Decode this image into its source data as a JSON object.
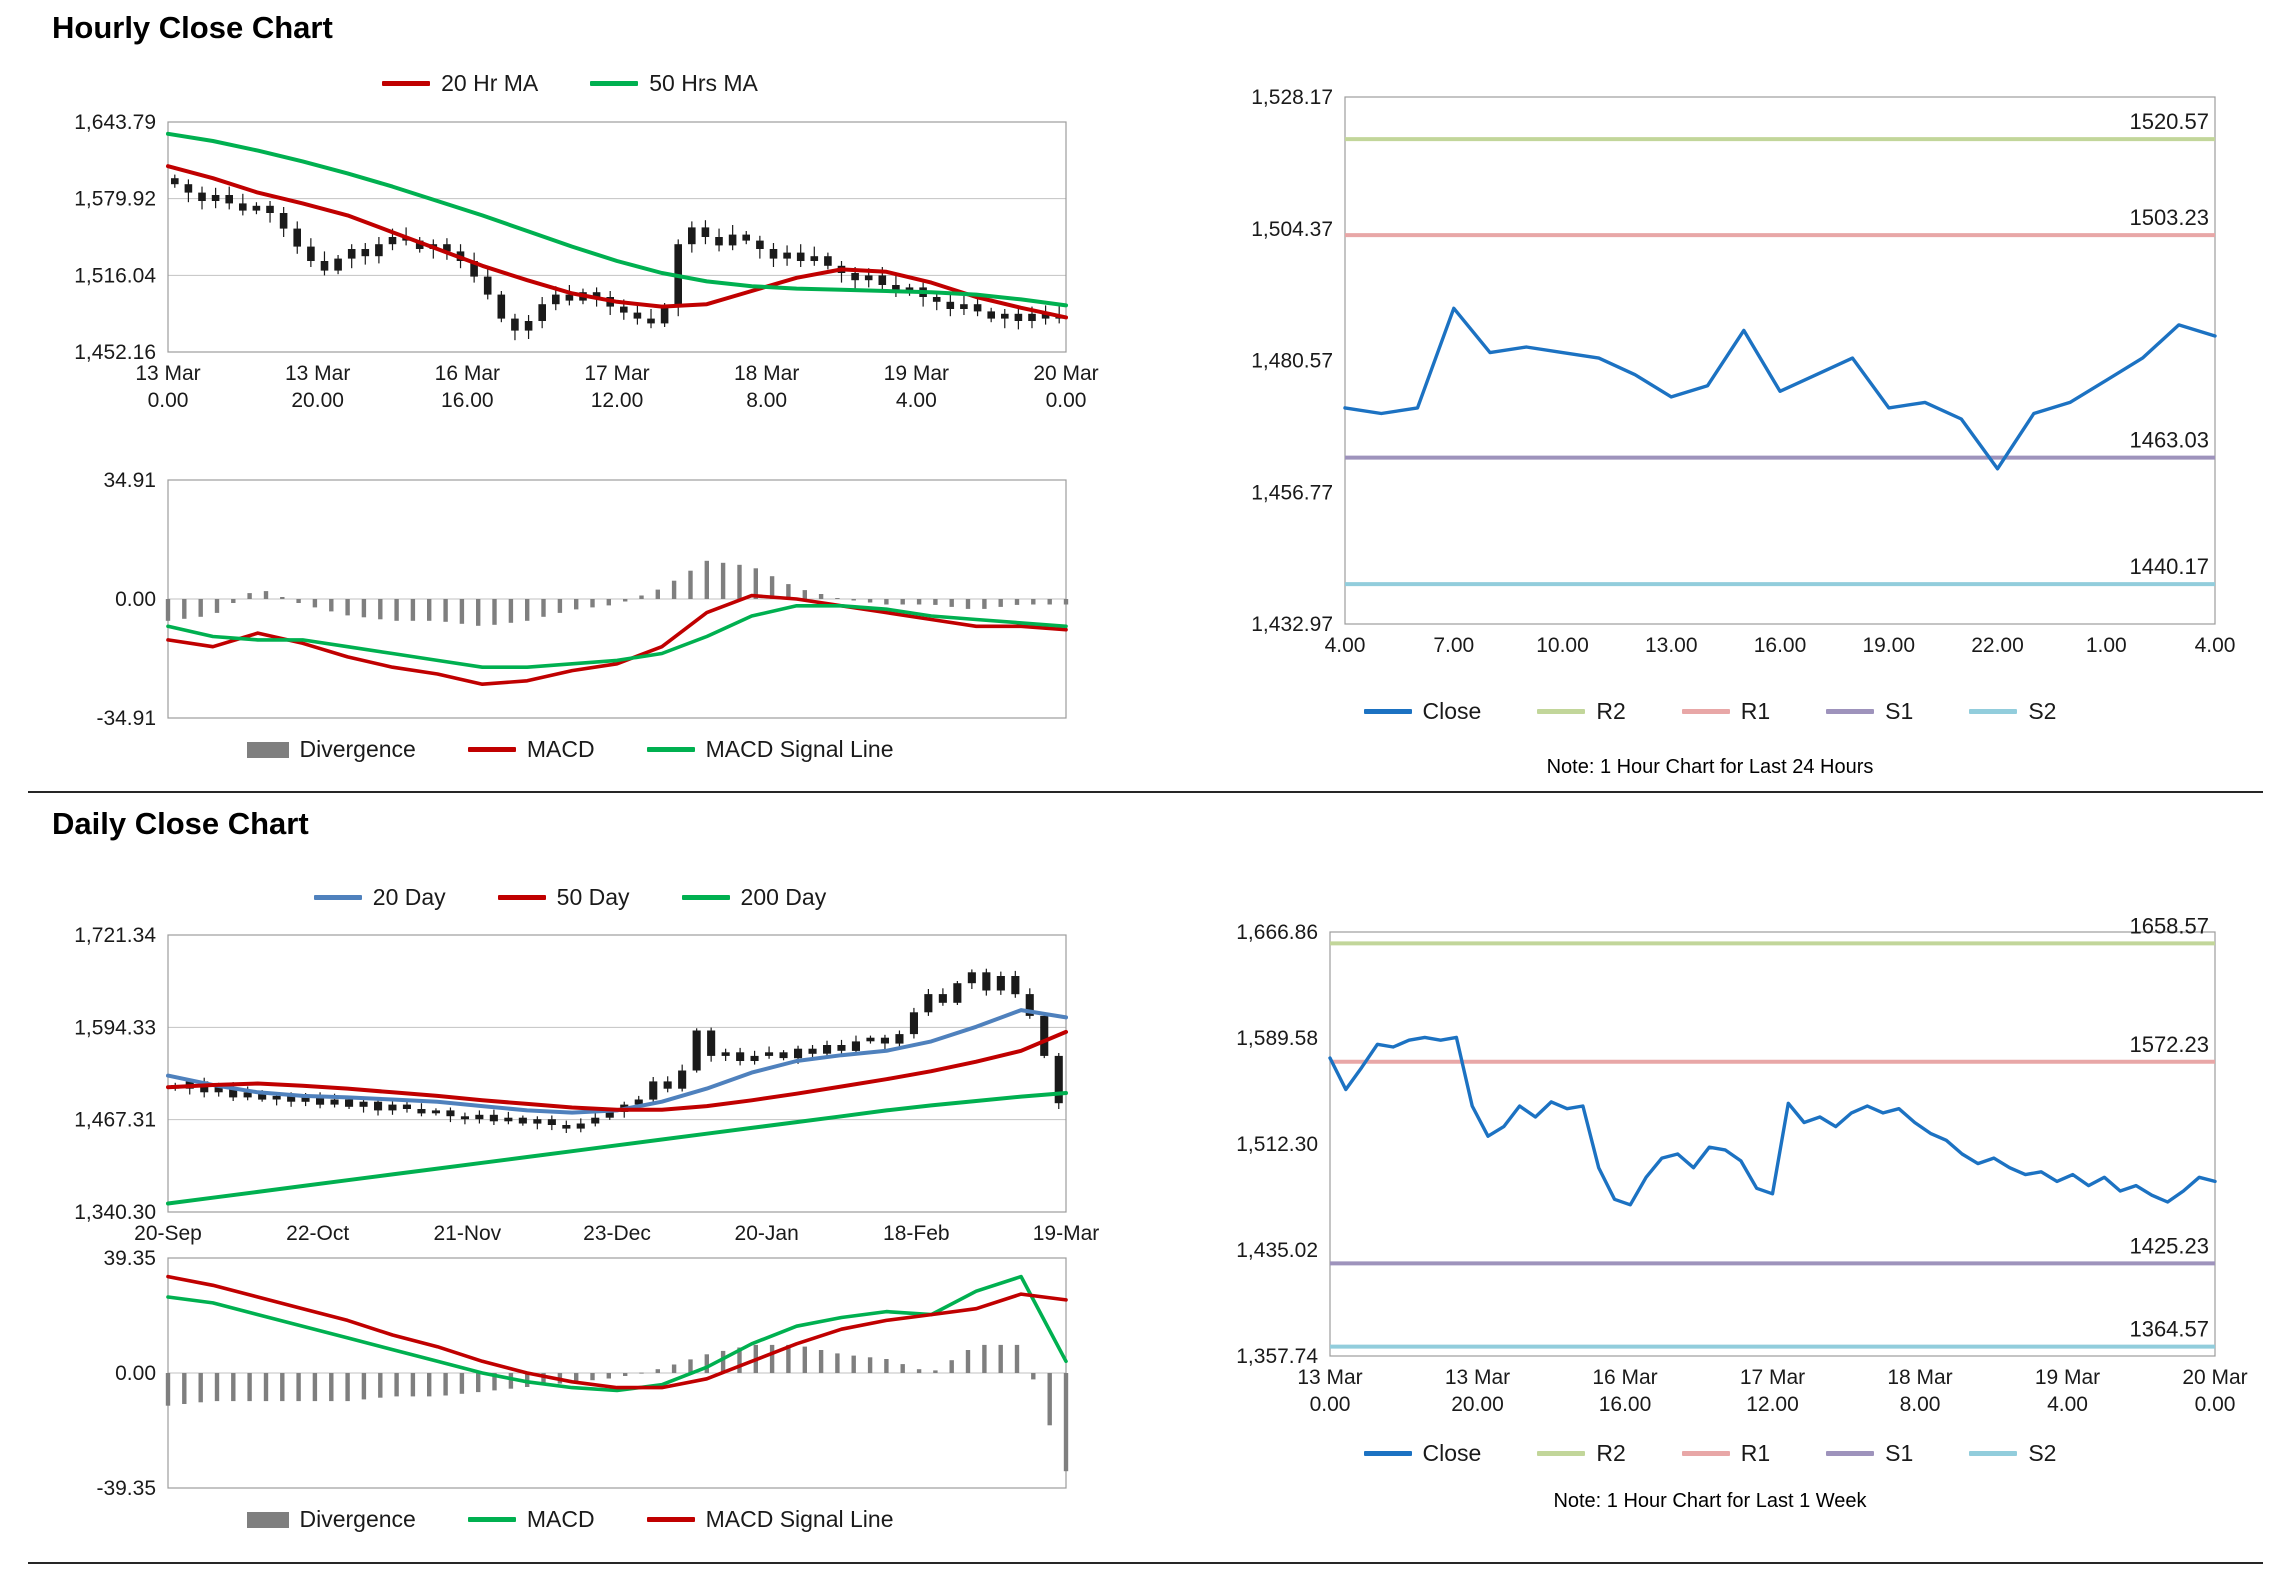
{
  "page": {
    "hourly_title": "Hourly Close Chart",
    "daily_title": "Daily Close Chart"
  },
  "colors": {
    "candle": "#1a1a1a",
    "red_ma": "#c00000",
    "green_ma": "#00b050",
    "blue_ma": "#4f81bd",
    "close_line": "#1c72c2",
    "r2": "#c2d69a",
    "r1": "#e8a7a7",
    "s1": "#9e93bc",
    "s2": "#92cddc",
    "divergence": "#7f7f7f",
    "grid": "#c2c2c2"
  },
  "chart_data": [
    {
      "id": "hourly_price",
      "type": "candlestick",
      "legend": [
        {
          "label": "20 Hr MA",
          "color": "#c00000"
        },
        {
          "label": "50 Hrs MA",
          "color": "#00b050"
        }
      ],
      "ylim": [
        1452.16,
        1643.79
      ],
      "grid": true,
      "yticks": [
        1643.79,
        1579.92,
        1516.04,
        1452.16
      ],
      "ytick_labels": [
        "1,643.79",
        "1,579.92",
        "1,516.04",
        "1,452.16"
      ],
      "xtick_labels": [
        [
          "13 Mar",
          "0.00"
        ],
        [
          "13 Mar",
          "20.00"
        ],
        [
          "16 Mar",
          "16.00"
        ],
        [
          "17 Mar",
          "12.00"
        ],
        [
          "18 Mar",
          "8.00"
        ],
        [
          "19 Mar",
          "4.00"
        ],
        [
          "20 Mar",
          "0.00"
        ]
      ],
      "closes": [
        1592,
        1585,
        1578,
        1583,
        1576,
        1570,
        1574,
        1568,
        1555,
        1540,
        1528,
        1520,
        1530,
        1538,
        1532,
        1542,
        1548,
        1545,
        1538,
        1542,
        1536,
        1528,
        1515,
        1500,
        1480,
        1470,
        1478,
        1492,
        1500,
        1495,
        1502,
        1498,
        1490,
        1485,
        1480,
        1476,
        1490,
        1542,
        1556,
        1548,
        1541,
        1550,
        1545,
        1538,
        1530,
        1535,
        1528,
        1532,
        1524,
        1518,
        1512,
        1516,
        1508,
        1502,
        1506,
        1498,
        1494,
        1488,
        1492,
        1486,
        1480,
        1484,
        1478,
        1484,
        1480,
        1483
      ],
      "series": [
        {
          "name": "20 Hr MA",
          "color": "#c00000",
          "values": [
            1607,
            1597,
            1585,
            1576,
            1566,
            1552,
            1538,
            1524,
            1512,
            1501,
            1494,
            1490,
            1492,
            1503,
            1514,
            1521,
            1519,
            1510,
            1498,
            1489,
            1481
          ]
        },
        {
          "name": "50 Hrs MA",
          "color": "#00b050",
          "values": [
            1634,
            1628,
            1620,
            1611,
            1601,
            1590,
            1578,
            1566,
            1553,
            1540,
            1528,
            1518,
            1511,
            1507,
            1505,
            1504,
            1503,
            1502,
            1500,
            1496,
            1491
          ]
        }
      ]
    },
    {
      "id": "hourly_macd",
      "type": "macd",
      "legend": [
        {
          "label": "Divergence",
          "color": "#7f7f7f",
          "swatch": "box"
        },
        {
          "label": "MACD",
          "color": "#c00000"
        },
        {
          "label": "MACD Signal Line",
          "color": "#00b050"
        }
      ],
      "ylim": [
        -34.91,
        34.91
      ],
      "grid": true,
      "yticks": [
        34.91,
        0,
        -34.91
      ],
      "ytick_labels": [
        "34.91",
        "0.00",
        "-34.91"
      ],
      "macd": {
        "color": "#c00000",
        "values": [
          -12,
          -14,
          -10,
          -13,
          -17,
          -20,
          -22,
          -25,
          -24,
          -21,
          -19,
          -14,
          -4,
          1,
          0,
          -2,
          -4,
          -6,
          -8,
          -8,
          -9
        ]
      },
      "signal": {
        "color": "#00b050",
        "values": [
          -8,
          -11,
          -12,
          -12,
          -14,
          -16,
          -18,
          -20,
          -20,
          -19,
          -18,
          -16,
          -11,
          -5,
          -2,
          -2,
          -3,
          -5,
          -6,
          -7,
          -8
        ]
      }
    },
    {
      "id": "hourly_pivot",
      "type": "line",
      "note": "Note: 1 Hour Chart for Last 24 Hours",
      "legend": [
        {
          "label": "Close",
          "color": "#1c72c2"
        },
        {
          "label": "R2",
          "color": "#c2d69a"
        },
        {
          "label": "R1",
          "color": "#e8a7a7"
        },
        {
          "label": "S1",
          "color": "#9e93bc"
        },
        {
          "label": "S2",
          "color": "#92cddc"
        }
      ],
      "ylim": [
        1432.97,
        1528.17
      ],
      "grid": false,
      "yticks": [
        1528.17,
        1504.37,
        1480.57,
        1456.77,
        1432.97
      ],
      "ytick_labels": [
        "1,528.17",
        "1,504.37",
        "1,480.57",
        "1,456.77",
        "1,432.97"
      ],
      "xtick_labels": [
        "4.00",
        "7.00",
        "10.00",
        "13.00",
        "16.00",
        "19.00",
        "22.00",
        "1.00",
        "4.00"
      ],
      "close": [
        1472,
        1471,
        1472,
        1490,
        1482,
        1483,
        1482,
        1481,
        1478,
        1474,
        1476,
        1486,
        1475,
        1478,
        1481,
        1472,
        1473,
        1470,
        1461,
        1471,
        1473,
        1477,
        1481,
        1487,
        1485
      ],
      "levels": [
        {
          "name": "R2",
          "value": 1520.57,
          "label": "1520.57",
          "color": "#c2d69a"
        },
        {
          "name": "R1",
          "value": 1503.23,
          "label": "1503.23",
          "color": "#e8a7a7"
        },
        {
          "name": "S1",
          "value": 1463.03,
          "label": "1463.03",
          "color": "#9e93bc"
        },
        {
          "name": "S2",
          "value": 1440.17,
          "label": "1440.17",
          "color": "#92cddc"
        }
      ]
    },
    {
      "id": "daily_price",
      "type": "candlestick",
      "legend": [
        {
          "label": "20 Day",
          "color": "#4f81bd"
        },
        {
          "label": "50 Day",
          "color": "#c00000"
        },
        {
          "label": "200 Day",
          "color": "#00b050"
        }
      ],
      "ylim": [
        1340.3,
        1721.34
      ],
      "grid": true,
      "yticks": [
        1721.34,
        1594.33,
        1467.31,
        1340.3
      ],
      "ytick_labels": [
        "1,721.34",
        "1,594.33",
        "1,467.31",
        "1,340.30"
      ],
      "xtick_labels": [
        "20-Sep",
        "22-Oct",
        "21-Nov",
        "23-Dec",
        "20-Jan",
        "18-Feb",
        "19-Mar"
      ],
      "closes": [
        1510,
        1520,
        1505,
        1512,
        1498,
        1505,
        1495,
        1500,
        1492,
        1498,
        1488,
        1495,
        1485,
        1492,
        1480,
        1488,
        1482,
        1476,
        1480,
        1472,
        1468,
        1474,
        1465,
        1470,
        1462,
        1468,
        1460,
        1455,
        1462,
        1470,
        1478,
        1488,
        1495,
        1520,
        1510,
        1535,
        1590,
        1555,
        1560,
        1548,
        1555,
        1560,
        1552,
        1565,
        1558,
        1570,
        1562,
        1575,
        1580,
        1572,
        1585,
        1615,
        1640,
        1628,
        1655,
        1670,
        1645,
        1665,
        1640,
        1610,
        1555,
        1490
      ],
      "series": [
        {
          "name": "20 Day",
          "color": "#4f81bd",
          "values": [
            1528,
            1515,
            1505,
            1500,
            1498,
            1495,
            1492,
            1486,
            1480,
            1477,
            1480,
            1492,
            1510,
            1532,
            1548,
            1556,
            1562,
            1575,
            1595,
            1618,
            1608
          ]
        },
        {
          "name": "50 Day",
          "color": "#c00000",
          "values": [
            1512,
            1515,
            1517,
            1514,
            1510,
            1505,
            1500,
            1494,
            1489,
            1484,
            1481,
            1481,
            1486,
            1494,
            1503,
            1513,
            1523,
            1534,
            1547,
            1562,
            1588
          ]
        },
        {
          "name": "200 Day",
          "color": "#00b050",
          "values": [
            1352,
            1360,
            1368,
            1376,
            1384,
            1392,
            1400,
            1408,
            1416,
            1424,
            1432,
            1440,
            1448,
            1456,
            1464,
            1472,
            1480,
            1487,
            1493,
            1499,
            1504
          ]
        }
      ]
    },
    {
      "id": "daily_macd",
      "type": "macd",
      "legend": [
        {
          "label": "Divergence",
          "color": "#7f7f7f",
          "swatch": "box"
        },
        {
          "label": "MACD",
          "color": "#00b050"
        },
        {
          "label": "MACD Signal Line",
          "color": "#c00000"
        }
      ],
      "ylim": [
        -39.35,
        39.35
      ],
      "grid": true,
      "yticks": [
        39.35,
        0,
        -39.35
      ],
      "ytick_labels": [
        "39.35",
        "0.00",
        "-39.35"
      ],
      "macd": {
        "color": "#00b050",
        "values": [
          26,
          24,
          20,
          16,
          12,
          8,
          4,
          0,
          -3,
          -5,
          -6,
          -4,
          2,
          10,
          16,
          19,
          21,
          20,
          28,
          33,
          4
        ]
      },
      "signal": {
        "color": "#c00000",
        "values": [
          33,
          30,
          26,
          22,
          18,
          13,
          9,
          4,
          0,
          -3,
          -5,
          -5,
          -2,
          4,
          10,
          15,
          18,
          20,
          22,
          27,
          25
        ]
      }
    },
    {
      "id": "daily_pivot",
      "type": "line",
      "note": "Note: 1 Hour Chart for Last 1 Week",
      "legend": [
        {
          "label": "Close",
          "color": "#1c72c2"
        },
        {
          "label": "R2",
          "color": "#c2d69a"
        },
        {
          "label": "R1",
          "color": "#e8a7a7"
        },
        {
          "label": "S1",
          "color": "#9e93bc"
        },
        {
          "label": "S2",
          "color": "#92cddc"
        }
      ],
      "ylim": [
        1357.74,
        1666.86
      ],
      "grid": false,
      "yticks": [
        1666.86,
        1589.58,
        1512.3,
        1435.02,
        1357.74
      ],
      "ytick_labels": [
        "1,666.86",
        "1,589.58",
        "1,512.30",
        "1,435.02",
        "1,357.74"
      ],
      "xtick_labels": [
        [
          "13 Mar",
          "0.00"
        ],
        [
          "13 Mar",
          "20.00"
        ],
        [
          "16 Mar",
          "16.00"
        ],
        [
          "17 Mar",
          "12.00"
        ],
        [
          "18 Mar",
          "8.00"
        ],
        [
          "19 Mar",
          "4.00"
        ],
        [
          "20 Mar",
          "0.00"
        ]
      ],
      "close": [
        1575,
        1552,
        1568,
        1585,
        1583,
        1588,
        1590,
        1588,
        1590,
        1540,
        1518,
        1525,
        1540,
        1532,
        1543,
        1538,
        1540,
        1495,
        1472,
        1468,
        1488,
        1502,
        1505,
        1495,
        1510,
        1508,
        1500,
        1480,
        1476,
        1542,
        1528,
        1532,
        1525,
        1535,
        1540,
        1535,
        1538,
        1528,
        1520,
        1515,
        1505,
        1498,
        1502,
        1495,
        1490,
        1492,
        1485,
        1490,
        1482,
        1488,
        1478,
        1482,
        1475,
        1470,
        1478,
        1488,
        1485
      ],
      "levels": [
        {
          "name": "R2",
          "value": 1658.57,
          "label": "1658.57",
          "color": "#c2d69a"
        },
        {
          "name": "R1",
          "value": 1572.23,
          "label": "1572.23",
          "color": "#e8a7a7"
        },
        {
          "name": "S1",
          "value": 1425.23,
          "label": "1425.23",
          "color": "#9e93bc"
        },
        {
          "name": "S2",
          "value": 1364.57,
          "label": "1364.57",
          "color": "#92cddc"
        }
      ]
    }
  ]
}
